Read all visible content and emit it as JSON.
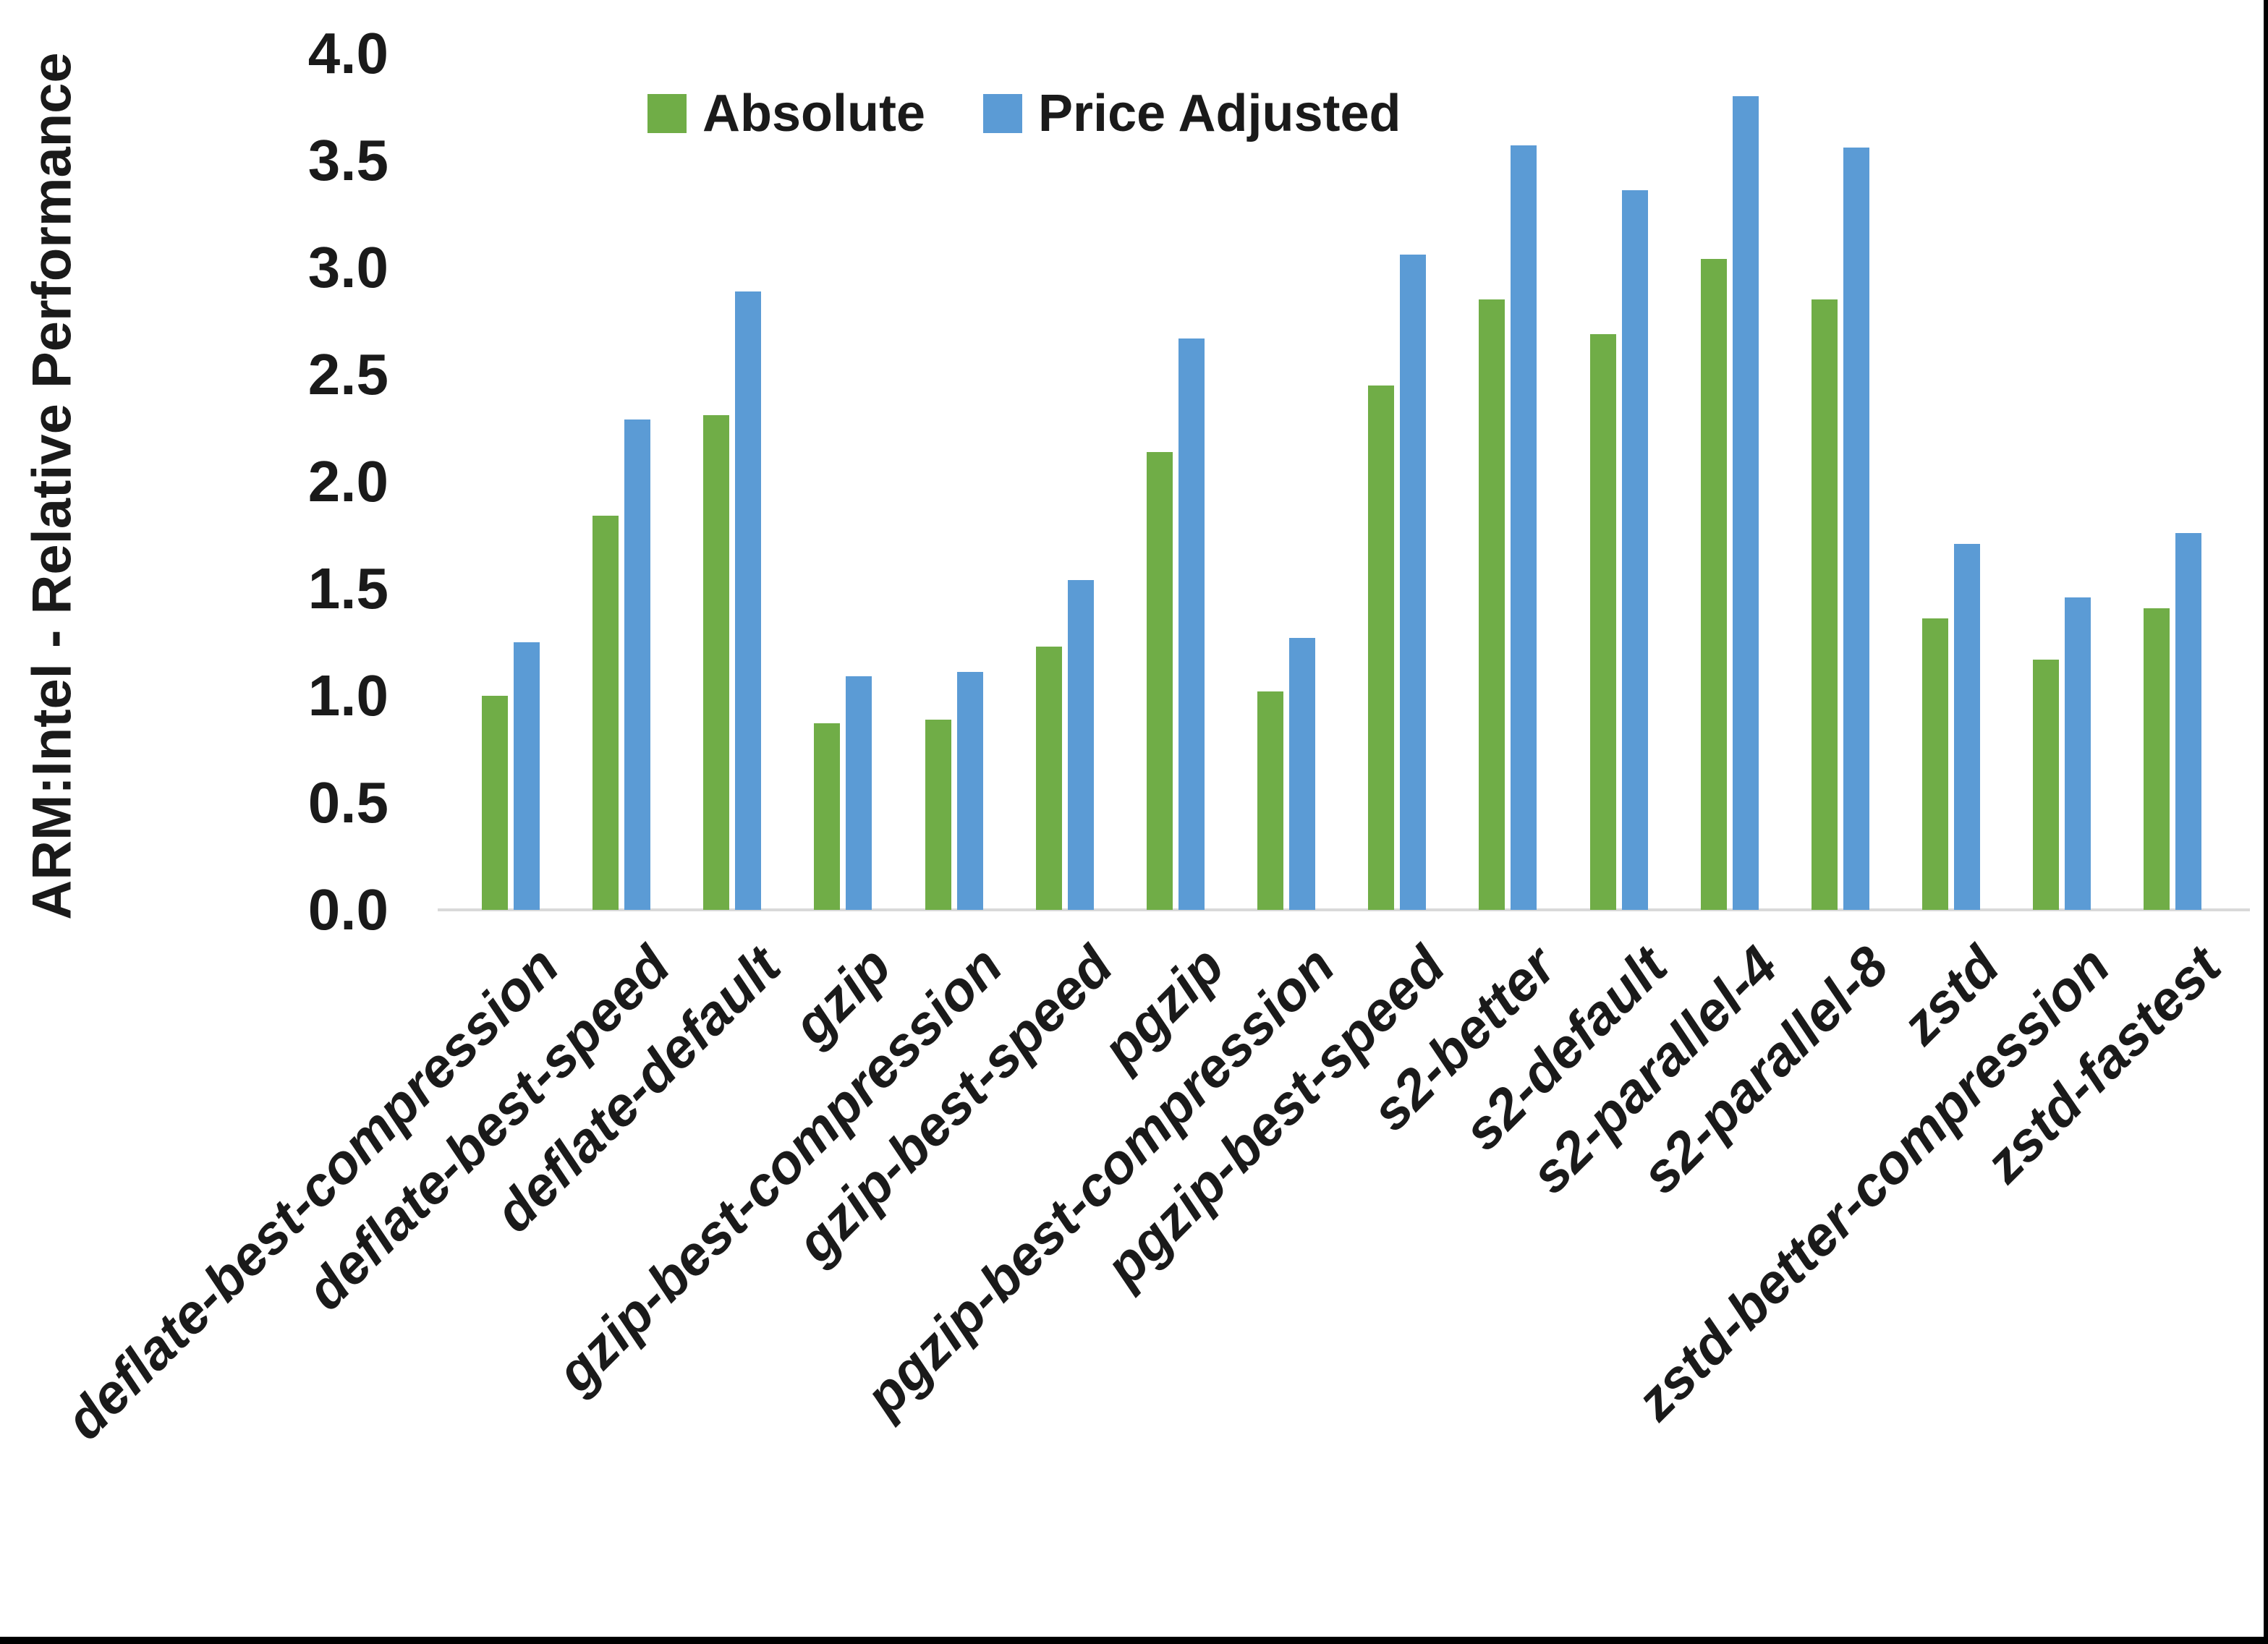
{
  "chart_data": {
    "type": "bar",
    "title": "",
    "xlabel": "",
    "ylabel": "ARM:Intel - Relative Performance",
    "ylim": [
      0.0,
      4.0
    ],
    "ytick_step": 0.5,
    "yticks": [
      "0.0",
      "0.5",
      "1.0",
      "1.5",
      "2.0",
      "2.5",
      "3.0",
      "3.5",
      "4.0"
    ],
    "grid": false,
    "legend_position": "top",
    "categories": [
      "deflate-best-compression",
      "deflate-best-speed",
      "deflate-default",
      "gzip",
      "gzip-best-compression",
      "gzip-best-speed",
      "pgzip",
      "pgzip-best-compression",
      "pgzip-best-speed",
      "s2-better",
      "s2-default",
      "s2-parallel-4",
      "s2-parallel-8",
      "zstd",
      "zstd-better-compression",
      "zstd-fastest"
    ],
    "series": [
      {
        "name": "Absolute",
        "color": "#70AD47",
        "values": [
          1.0,
          1.84,
          2.31,
          0.87,
          0.89,
          1.23,
          2.14,
          1.02,
          2.45,
          2.85,
          2.69,
          3.04,
          2.85,
          1.36,
          1.17,
          1.41
        ]
      },
      {
        "name": "Price Adjusted",
        "color": "#5B9BD5",
        "values": [
          1.25,
          2.29,
          2.89,
          1.09,
          1.11,
          1.54,
          2.67,
          1.27,
          3.06,
          3.57,
          3.36,
          3.8,
          3.56,
          1.71,
          1.46,
          1.76
        ]
      }
    ],
    "axis_line_color": "#d9d9d9",
    "background_color": "#ffffff"
  }
}
